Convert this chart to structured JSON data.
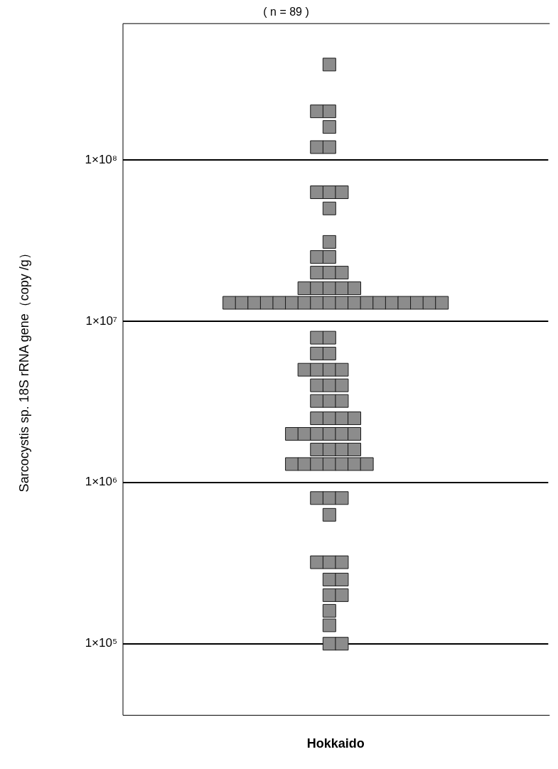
{
  "chart_data": {
    "type": "scatter",
    "title": "( n = 89 )",
    "xlabel": "Hokkaido",
    "ylabel": "Sarcocystis sp. 18S rRNA gene（copy /g）",
    "log": "y",
    "grid": "y",
    "tick_labels": "y",
    "marker": "square",
    "ylim": [
      36000,
      700000000
    ],
    "yticks": [
      {
        "value": 100000,
        "label": "1×10⁵"
      },
      {
        "value": 1000000,
        "label": "1×10⁶"
      },
      {
        "value": 10000000,
        "label": "1×10⁷"
      },
      {
        "value": 100000000,
        "label": "1×10⁸"
      }
    ],
    "categories": [
      null,
      null,
      null,
      null,
      null,
      null,
      null,
      null,
      null,
      null,
      null,
      null,
      null,
      null,
      null,
      null,
      null,
      null,
      null,
      null,
      null,
      null,
      null,
      null,
      null,
      null,
      null,
      null,
      null,
      null,
      null,
      null,
      null,
      null
    ],
    "series": [
      {
        "color": "#8c8c8c",
        "values": [
          null,
          null,
          null,
          null,
          null,
          null,
          null,
          null,
          null,
          null,
          null,
          null,
          null,
          null,
          null,
          null,
          390000000,
          null,
          null,
          null,
          null,
          null,
          null,
          null,
          null,
          null,
          null,
          null,
          null,
          null,
          null,
          null,
          null,
          null
        ]
      },
      {
        "color": "#8c8c8c",
        "values": [
          null,
          null,
          null,
          null,
          null,
          null,
          null,
          null,
          null,
          null,
          null,
          null,
          null,
          null,
          null,
          200000000,
          200000000,
          null,
          null,
          null,
          null,
          null,
          null,
          null,
          null,
          null,
          null,
          null,
          null,
          null,
          null,
          null,
          null,
          null
        ]
      },
      {
        "color": "#8c8c8c",
        "values": [
          null,
          null,
          null,
          null,
          null,
          null,
          null,
          null,
          null,
          null,
          null,
          null,
          null,
          null,
          null,
          null,
          160000000,
          null,
          null,
          null,
          null,
          null,
          null,
          null,
          null,
          null,
          null,
          null,
          null,
          null,
          null,
          null,
          null,
          null
        ]
      },
      {
        "color": "#8c8c8c",
        "values": [
          null,
          null,
          null,
          null,
          null,
          null,
          null,
          null,
          null,
          null,
          null,
          null,
          null,
          null,
          null,
          120000000,
          120000000,
          null,
          null,
          null,
          null,
          null,
          null,
          null,
          null,
          null,
          null,
          null,
          null,
          null,
          null,
          null,
          null,
          null
        ]
      },
      {
        "color": "#8c8c8c",
        "values": [
          null,
          null,
          null,
          null,
          null,
          null,
          null,
          null,
          null,
          null,
          null,
          null,
          null,
          null,
          null,
          63000000,
          63000000,
          63000000,
          null,
          null,
          null,
          null,
          null,
          null,
          null,
          null,
          null,
          null,
          null,
          null,
          null,
          null,
          null,
          null
        ]
      },
      {
        "color": "#8c8c8c",
        "values": [
          null,
          null,
          null,
          null,
          null,
          null,
          null,
          null,
          null,
          null,
          null,
          null,
          null,
          null,
          null,
          null,
          50000000,
          null,
          null,
          null,
          null,
          null,
          null,
          null,
          null,
          null,
          null,
          null,
          null,
          null,
          null,
          null,
          null,
          null
        ]
      },
      {
        "color": "#8c8c8c",
        "values": [
          null,
          null,
          null,
          null,
          null,
          null,
          null,
          null,
          null,
          null,
          null,
          null,
          null,
          null,
          null,
          null,
          31000000,
          null,
          null,
          null,
          null,
          null,
          null,
          null,
          null,
          null,
          null,
          null,
          null,
          null,
          null,
          null,
          null,
          null
        ]
      },
      {
        "color": "#8c8c8c",
        "values": [
          null,
          null,
          null,
          null,
          null,
          null,
          null,
          null,
          null,
          null,
          null,
          null,
          null,
          null,
          null,
          25000000,
          25000000,
          null,
          null,
          null,
          null,
          null,
          null,
          null,
          null,
          null,
          null,
          null,
          null,
          null,
          null,
          null,
          null,
          null
        ]
      },
      {
        "color": "#8c8c8c",
        "values": [
          null,
          null,
          null,
          null,
          null,
          null,
          null,
          null,
          null,
          null,
          null,
          null,
          null,
          null,
          null,
          20000000,
          20000000,
          20000000,
          null,
          null,
          null,
          null,
          null,
          null,
          null,
          null,
          null,
          null,
          null,
          null,
          null,
          null,
          null,
          null
        ]
      },
      {
        "color": "#8c8c8c",
        "values": [
          null,
          null,
          null,
          null,
          null,
          null,
          null,
          null,
          null,
          null,
          null,
          null,
          null,
          null,
          16000000,
          16000000,
          16000000,
          16000000,
          16000000,
          null,
          null,
          null,
          null,
          null,
          null,
          null,
          null,
          null,
          null,
          null,
          null,
          null,
          null,
          null
        ]
      },
      {
        "color": "#8c8c8c",
        "values": [
          null,
          null,
          null,
          null,
          null,
          null,
          null,
          null,
          13000000,
          13000000,
          13000000,
          13000000,
          13000000,
          13000000,
          13000000,
          13000000,
          13000000,
          13000000,
          13000000,
          13000000,
          13000000,
          13000000,
          13000000,
          13000000,
          13000000,
          13000000,
          null,
          null,
          null,
          null,
          null,
          null,
          null,
          null
        ]
      },
      {
        "color": "#8c8c8c",
        "values": [
          null,
          null,
          null,
          null,
          null,
          null,
          null,
          null,
          null,
          null,
          null,
          null,
          null,
          null,
          null,
          7900000,
          7900000,
          null,
          null,
          null,
          null,
          null,
          null,
          null,
          null,
          null,
          null,
          null,
          null,
          null,
          null,
          null,
          null,
          null
        ]
      },
      {
        "color": "#8c8c8c",
        "values": [
          null,
          null,
          null,
          null,
          null,
          null,
          null,
          null,
          null,
          null,
          null,
          null,
          null,
          null,
          null,
          6300000,
          6300000,
          null,
          null,
          null,
          null,
          null,
          null,
          null,
          null,
          null,
          null,
          null,
          null,
          null,
          null,
          null,
          null,
          null
        ]
      },
      {
        "color": "#8c8c8c",
        "values": [
          null,
          null,
          null,
          null,
          null,
          null,
          null,
          null,
          null,
          null,
          null,
          null,
          null,
          null,
          5000000,
          5000000,
          5000000,
          5000000,
          null,
          null,
          null,
          null,
          null,
          null,
          null,
          null,
          null,
          null,
          null,
          null,
          null,
          null,
          null,
          null
        ]
      },
      {
        "color": "#8c8c8c",
        "values": [
          null,
          null,
          null,
          null,
          null,
          null,
          null,
          null,
          null,
          null,
          null,
          null,
          null,
          null,
          null,
          4000000,
          4000000,
          4000000,
          null,
          null,
          null,
          null,
          null,
          null,
          null,
          null,
          null,
          null,
          null,
          null,
          null,
          null,
          null,
          null
        ]
      },
      {
        "color": "#8c8c8c",
        "values": [
          null,
          null,
          null,
          null,
          null,
          null,
          null,
          null,
          null,
          null,
          null,
          null,
          null,
          null,
          null,
          3200000,
          3200000,
          3200000,
          null,
          null,
          null,
          null,
          null,
          null,
          null,
          null,
          null,
          null,
          null,
          null,
          null,
          null,
          null,
          null
        ]
      },
      {
        "color": "#8c8c8c",
        "values": [
          null,
          null,
          null,
          null,
          null,
          null,
          null,
          null,
          null,
          null,
          null,
          null,
          null,
          null,
          null,
          2500000,
          2500000,
          2500000,
          2500000,
          null,
          null,
          null,
          null,
          null,
          null,
          null,
          null,
          null,
          null,
          null,
          null,
          null,
          null,
          null
        ]
      },
      {
        "color": "#8c8c8c",
        "values": [
          null,
          null,
          null,
          null,
          null,
          null,
          null,
          null,
          null,
          null,
          null,
          null,
          null,
          2000000,
          2000000,
          2000000,
          2000000,
          2000000,
          2000000,
          null,
          null,
          null,
          null,
          null,
          null,
          null,
          null,
          null,
          null,
          null,
          null,
          null,
          null,
          null
        ]
      },
      {
        "color": "#8c8c8c",
        "values": [
          null,
          null,
          null,
          null,
          null,
          null,
          null,
          null,
          null,
          null,
          null,
          null,
          null,
          null,
          null,
          1600000,
          1600000,
          1600000,
          1600000,
          null,
          null,
          null,
          null,
          null,
          null,
          null,
          null,
          null,
          null,
          null,
          null,
          null,
          null,
          null
        ]
      },
      {
        "color": "#8c8c8c",
        "values": [
          null,
          null,
          null,
          null,
          null,
          null,
          null,
          null,
          null,
          null,
          null,
          null,
          null,
          1300000,
          1300000,
          1300000,
          1300000,
          1300000,
          1300000,
          1300000,
          null,
          null,
          null,
          null,
          null,
          null,
          null,
          null,
          null,
          null,
          null,
          null,
          null,
          null
        ]
      },
      {
        "color": "#8c8c8c",
        "values": [
          null,
          null,
          null,
          null,
          null,
          null,
          null,
          null,
          null,
          null,
          null,
          null,
          null,
          null,
          null,
          800000,
          800000,
          800000,
          null,
          null,
          null,
          null,
          null,
          null,
          null,
          null,
          null,
          null,
          null,
          null,
          null,
          null,
          null,
          null
        ]
      },
      {
        "color": "#8c8c8c",
        "values": [
          null,
          null,
          null,
          null,
          null,
          null,
          null,
          null,
          null,
          null,
          null,
          null,
          null,
          null,
          null,
          null,
          630000,
          null,
          null,
          null,
          null,
          null,
          null,
          null,
          null,
          null,
          null,
          null,
          null,
          null,
          null,
          null,
          null,
          null
        ]
      },
      {
        "color": "#8c8c8c",
        "values": [
          null,
          null,
          null,
          null,
          null,
          null,
          null,
          null,
          null,
          null,
          null,
          null,
          null,
          null,
          null,
          320000,
          320000,
          320000,
          null,
          null,
          null,
          null,
          null,
          null,
          null,
          null,
          null,
          null,
          null,
          null,
          null,
          null,
          null,
          null
        ]
      },
      {
        "color": "#8c8c8c",
        "values": [
          null,
          null,
          null,
          null,
          null,
          null,
          null,
          null,
          null,
          null,
          null,
          null,
          null,
          null,
          null,
          null,
          250000,
          250000,
          null,
          null,
          null,
          null,
          null,
          null,
          null,
          null,
          null,
          null,
          null,
          null,
          null,
          null,
          null,
          null
        ]
      },
      {
        "color": "#8c8c8c",
        "values": [
          null,
          null,
          null,
          null,
          null,
          null,
          null,
          null,
          null,
          null,
          null,
          null,
          null,
          null,
          null,
          null,
          200000,
          200000,
          null,
          null,
          null,
          null,
          null,
          null,
          null,
          null,
          null,
          null,
          null,
          null,
          null,
          null,
          null,
          null
        ]
      },
      {
        "color": "#8c8c8c",
        "values": [
          null,
          null,
          null,
          null,
          null,
          null,
          null,
          null,
          null,
          null,
          null,
          null,
          null,
          null,
          null,
          null,
          160000,
          null,
          null,
          null,
          null,
          null,
          null,
          null,
          null,
          null,
          null,
          null,
          null,
          null,
          null,
          null,
          null,
          null
        ]
      },
      {
        "color": "#8c8c8c",
        "values": [
          null,
          null,
          null,
          null,
          null,
          null,
          null,
          null,
          null,
          null,
          null,
          null,
          null,
          null,
          null,
          null,
          130000,
          null,
          null,
          null,
          null,
          null,
          null,
          null,
          null,
          null,
          null,
          null,
          null,
          null,
          null,
          null,
          null,
          null
        ]
      },
      {
        "color": "#8c8c8c",
        "values": [
          null,
          null,
          null,
          null,
          null,
          null,
          null,
          null,
          null,
          null,
          null,
          null,
          null,
          null,
          null,
          null,
          100000,
          100000,
          null,
          null,
          null,
          null,
          null,
          null,
          null,
          null,
          null,
          null,
          null,
          null,
          null,
          null,
          null,
          null
        ]
      }
    ]
  }
}
